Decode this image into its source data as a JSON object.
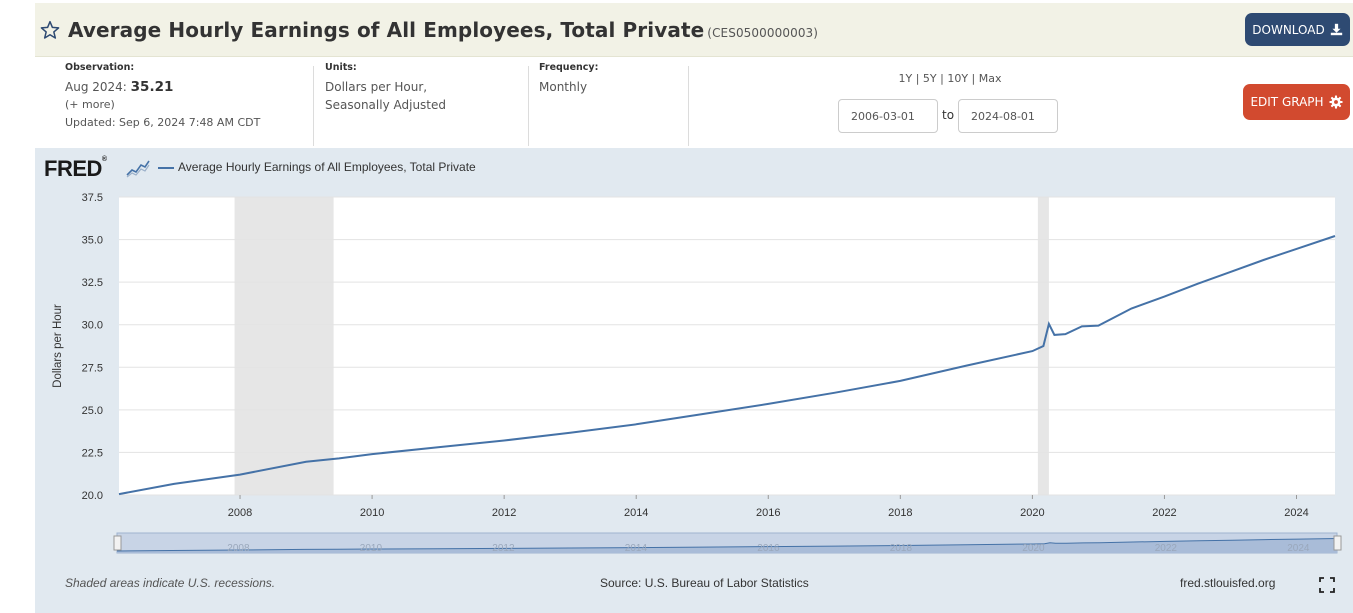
{
  "header": {
    "title": "Average Hourly Earnings of All Employees, Total Private",
    "series_id": "(CES0500000003)",
    "download_label": "DOWNLOAD"
  },
  "meta": {
    "observation_label": "Observation:",
    "observation_date": "Aug 2024:",
    "observation_value": "35.21",
    "more_label": "(+ more)",
    "updated": "Updated: Sep 6, 2024 7:48 AM CDT",
    "units_label": "Units:",
    "units_line1": "Dollars per Hour,",
    "units_line2": "Seasonally Adjusted",
    "frequency_label": "Frequency:",
    "frequency_value": "Monthly"
  },
  "controls": {
    "range_1y": "1Y",
    "range_5y": "5Y",
    "range_10y": "10Y",
    "range_max": "Max",
    "start_date": "2006-03-01",
    "to_label": "to",
    "end_date": "2024-08-01",
    "edit_label": "EDIT GRAPH"
  },
  "graph": {
    "logo": "FRED",
    "legend_label": "Average Hourly Earnings of All Employees, Total Private",
    "recession_note": "Shaded areas indicate U.S. recessions.",
    "source": "Source: U.S. Bureau of Labor Statistics",
    "site": "fred.stlouisfed.org"
  },
  "colors": {
    "line": "#4572a7",
    "recession": "#e6e6e6",
    "panel": "#e1e9f0",
    "download_button": "#2e4a72",
    "edit_button": "#d24a2f"
  },
  "chart_data": {
    "type": "line",
    "ylabel": "Dollars per Hour",
    "xlim": [
      2006.167,
      2024.583
    ],
    "ylim": [
      20.0,
      37.5
    ],
    "yticks": [
      "20.0",
      "22.5",
      "25.0",
      "27.5",
      "30.0",
      "32.5",
      "35.0",
      "37.5"
    ],
    "xticks": [
      "2008",
      "2010",
      "2012",
      "2014",
      "2016",
      "2018",
      "2020",
      "2022",
      "2024"
    ],
    "recessions": [
      [
        2007.917,
        2009.417
      ],
      [
        2020.083,
        2020.25
      ]
    ],
    "series": [
      {
        "name": "Average Hourly Earnings of All Employees, Total Private",
        "x": [
          2006.167,
          2007.0,
          2008.0,
          2009.0,
          2009.5,
          2010.0,
          2011.0,
          2012.0,
          2013.0,
          2014.0,
          2015.0,
          2016.0,
          2017.0,
          2018.0,
          2019.0,
          2020.0,
          2020.167,
          2020.25,
          2020.333,
          2020.5,
          2020.75,
          2021.0,
          2021.5,
          2022.0,
          2022.5,
          2023.0,
          2023.5,
          2024.0,
          2024.583
        ],
        "y": [
          20.05,
          20.65,
          21.2,
          21.95,
          22.15,
          22.4,
          22.8,
          23.2,
          23.65,
          24.15,
          24.75,
          25.35,
          26.0,
          26.7,
          27.6,
          28.45,
          28.75,
          30.05,
          29.4,
          29.45,
          29.9,
          29.95,
          30.95,
          31.65,
          32.4,
          33.1,
          33.8,
          34.45,
          35.21
        ]
      }
    ]
  }
}
